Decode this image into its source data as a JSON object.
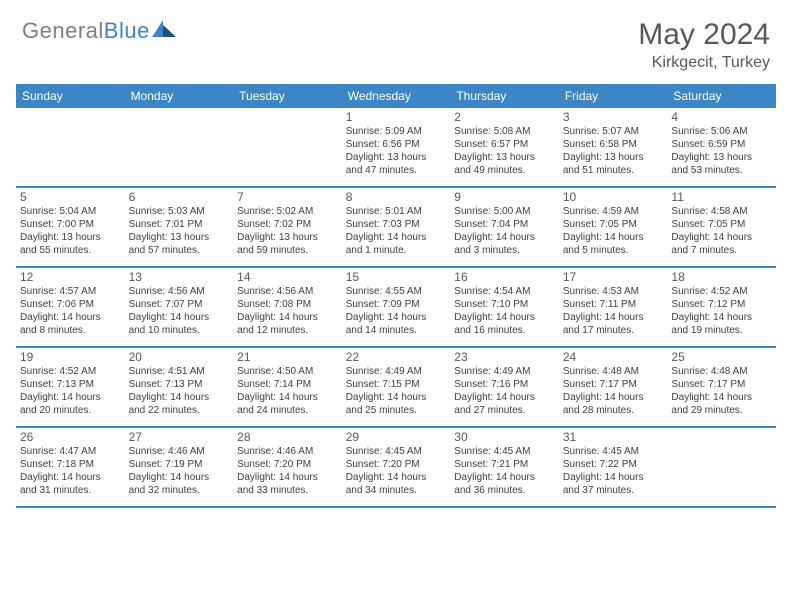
{
  "brand": {
    "part1": "General",
    "part2": "Blue"
  },
  "title": {
    "month": "May 2024",
    "location": "Kirkgecit, Turkey"
  },
  "colors": {
    "header_bg": "#3d86c6",
    "text": "#404040",
    "title_text": "#595959",
    "logo_gray": "#808080",
    "logo_blue": "#3d86c6",
    "border": "#3d86c6",
    "background": "#ffffff"
  },
  "dow": [
    "Sunday",
    "Monday",
    "Tuesday",
    "Wednesday",
    "Thursday",
    "Friday",
    "Saturday"
  ],
  "weeks": [
    [
      null,
      null,
      null,
      {
        "n": "1",
        "sr": "Sunrise: 5:09 AM",
        "ss": "Sunset: 6:56 PM",
        "dl1": "Daylight: 13 hours",
        "dl2": "and 47 minutes."
      },
      {
        "n": "2",
        "sr": "Sunrise: 5:08 AM",
        "ss": "Sunset: 6:57 PM",
        "dl1": "Daylight: 13 hours",
        "dl2": "and 49 minutes."
      },
      {
        "n": "3",
        "sr": "Sunrise: 5:07 AM",
        "ss": "Sunset: 6:58 PM",
        "dl1": "Daylight: 13 hours",
        "dl2": "and 51 minutes."
      },
      {
        "n": "4",
        "sr": "Sunrise: 5:06 AM",
        "ss": "Sunset: 6:59 PM",
        "dl1": "Daylight: 13 hours",
        "dl2": "and 53 minutes."
      }
    ],
    [
      {
        "n": "5",
        "sr": "Sunrise: 5:04 AM",
        "ss": "Sunset: 7:00 PM",
        "dl1": "Daylight: 13 hours",
        "dl2": "and 55 minutes."
      },
      {
        "n": "6",
        "sr": "Sunrise: 5:03 AM",
        "ss": "Sunset: 7:01 PM",
        "dl1": "Daylight: 13 hours",
        "dl2": "and 57 minutes."
      },
      {
        "n": "7",
        "sr": "Sunrise: 5:02 AM",
        "ss": "Sunset: 7:02 PM",
        "dl1": "Daylight: 13 hours",
        "dl2": "and 59 minutes."
      },
      {
        "n": "8",
        "sr": "Sunrise: 5:01 AM",
        "ss": "Sunset: 7:03 PM",
        "dl1": "Daylight: 14 hours",
        "dl2": "and 1 minute."
      },
      {
        "n": "9",
        "sr": "Sunrise: 5:00 AM",
        "ss": "Sunset: 7:04 PM",
        "dl1": "Daylight: 14 hours",
        "dl2": "and 3 minutes."
      },
      {
        "n": "10",
        "sr": "Sunrise: 4:59 AM",
        "ss": "Sunset: 7:05 PM",
        "dl1": "Daylight: 14 hours",
        "dl2": "and 5 minutes."
      },
      {
        "n": "11",
        "sr": "Sunrise: 4:58 AM",
        "ss": "Sunset: 7:05 PM",
        "dl1": "Daylight: 14 hours",
        "dl2": "and 7 minutes."
      }
    ],
    [
      {
        "n": "12",
        "sr": "Sunrise: 4:57 AM",
        "ss": "Sunset: 7:06 PM",
        "dl1": "Daylight: 14 hours",
        "dl2": "and 8 minutes."
      },
      {
        "n": "13",
        "sr": "Sunrise: 4:56 AM",
        "ss": "Sunset: 7:07 PM",
        "dl1": "Daylight: 14 hours",
        "dl2": "and 10 minutes."
      },
      {
        "n": "14",
        "sr": "Sunrise: 4:56 AM",
        "ss": "Sunset: 7:08 PM",
        "dl1": "Daylight: 14 hours",
        "dl2": "and 12 minutes."
      },
      {
        "n": "15",
        "sr": "Sunrise: 4:55 AM",
        "ss": "Sunset: 7:09 PM",
        "dl1": "Daylight: 14 hours",
        "dl2": "and 14 minutes."
      },
      {
        "n": "16",
        "sr": "Sunrise: 4:54 AM",
        "ss": "Sunset: 7:10 PM",
        "dl1": "Daylight: 14 hours",
        "dl2": "and 16 minutes."
      },
      {
        "n": "17",
        "sr": "Sunrise: 4:53 AM",
        "ss": "Sunset: 7:11 PM",
        "dl1": "Daylight: 14 hours",
        "dl2": "and 17 minutes."
      },
      {
        "n": "18",
        "sr": "Sunrise: 4:52 AM",
        "ss": "Sunset: 7:12 PM",
        "dl1": "Daylight: 14 hours",
        "dl2": "and 19 minutes."
      }
    ],
    [
      {
        "n": "19",
        "sr": "Sunrise: 4:52 AM",
        "ss": "Sunset: 7:13 PM",
        "dl1": "Daylight: 14 hours",
        "dl2": "and 20 minutes."
      },
      {
        "n": "20",
        "sr": "Sunrise: 4:51 AM",
        "ss": "Sunset: 7:13 PM",
        "dl1": "Daylight: 14 hours",
        "dl2": "and 22 minutes."
      },
      {
        "n": "21",
        "sr": "Sunrise: 4:50 AM",
        "ss": "Sunset: 7:14 PM",
        "dl1": "Daylight: 14 hours",
        "dl2": "and 24 minutes."
      },
      {
        "n": "22",
        "sr": "Sunrise: 4:49 AM",
        "ss": "Sunset: 7:15 PM",
        "dl1": "Daylight: 14 hours",
        "dl2": "and 25 minutes."
      },
      {
        "n": "23",
        "sr": "Sunrise: 4:49 AM",
        "ss": "Sunset: 7:16 PM",
        "dl1": "Daylight: 14 hours",
        "dl2": "and 27 minutes."
      },
      {
        "n": "24",
        "sr": "Sunrise: 4:48 AM",
        "ss": "Sunset: 7:17 PM",
        "dl1": "Daylight: 14 hours",
        "dl2": "and 28 minutes."
      },
      {
        "n": "25",
        "sr": "Sunrise: 4:48 AM",
        "ss": "Sunset: 7:17 PM",
        "dl1": "Daylight: 14 hours",
        "dl2": "and 29 minutes."
      }
    ],
    [
      {
        "n": "26",
        "sr": "Sunrise: 4:47 AM",
        "ss": "Sunset: 7:18 PM",
        "dl1": "Daylight: 14 hours",
        "dl2": "and 31 minutes."
      },
      {
        "n": "27",
        "sr": "Sunrise: 4:46 AM",
        "ss": "Sunset: 7:19 PM",
        "dl1": "Daylight: 14 hours",
        "dl2": "and 32 minutes."
      },
      {
        "n": "28",
        "sr": "Sunrise: 4:46 AM",
        "ss": "Sunset: 7:20 PM",
        "dl1": "Daylight: 14 hours",
        "dl2": "and 33 minutes."
      },
      {
        "n": "29",
        "sr": "Sunrise: 4:45 AM",
        "ss": "Sunset: 7:20 PM",
        "dl1": "Daylight: 14 hours",
        "dl2": "and 34 minutes."
      },
      {
        "n": "30",
        "sr": "Sunrise: 4:45 AM",
        "ss": "Sunset: 7:21 PM",
        "dl1": "Daylight: 14 hours",
        "dl2": "and 36 minutes."
      },
      {
        "n": "31",
        "sr": "Sunrise: 4:45 AM",
        "ss": "Sunset: 7:22 PM",
        "dl1": "Daylight: 14 hours",
        "dl2": "and 37 minutes."
      },
      null
    ]
  ]
}
